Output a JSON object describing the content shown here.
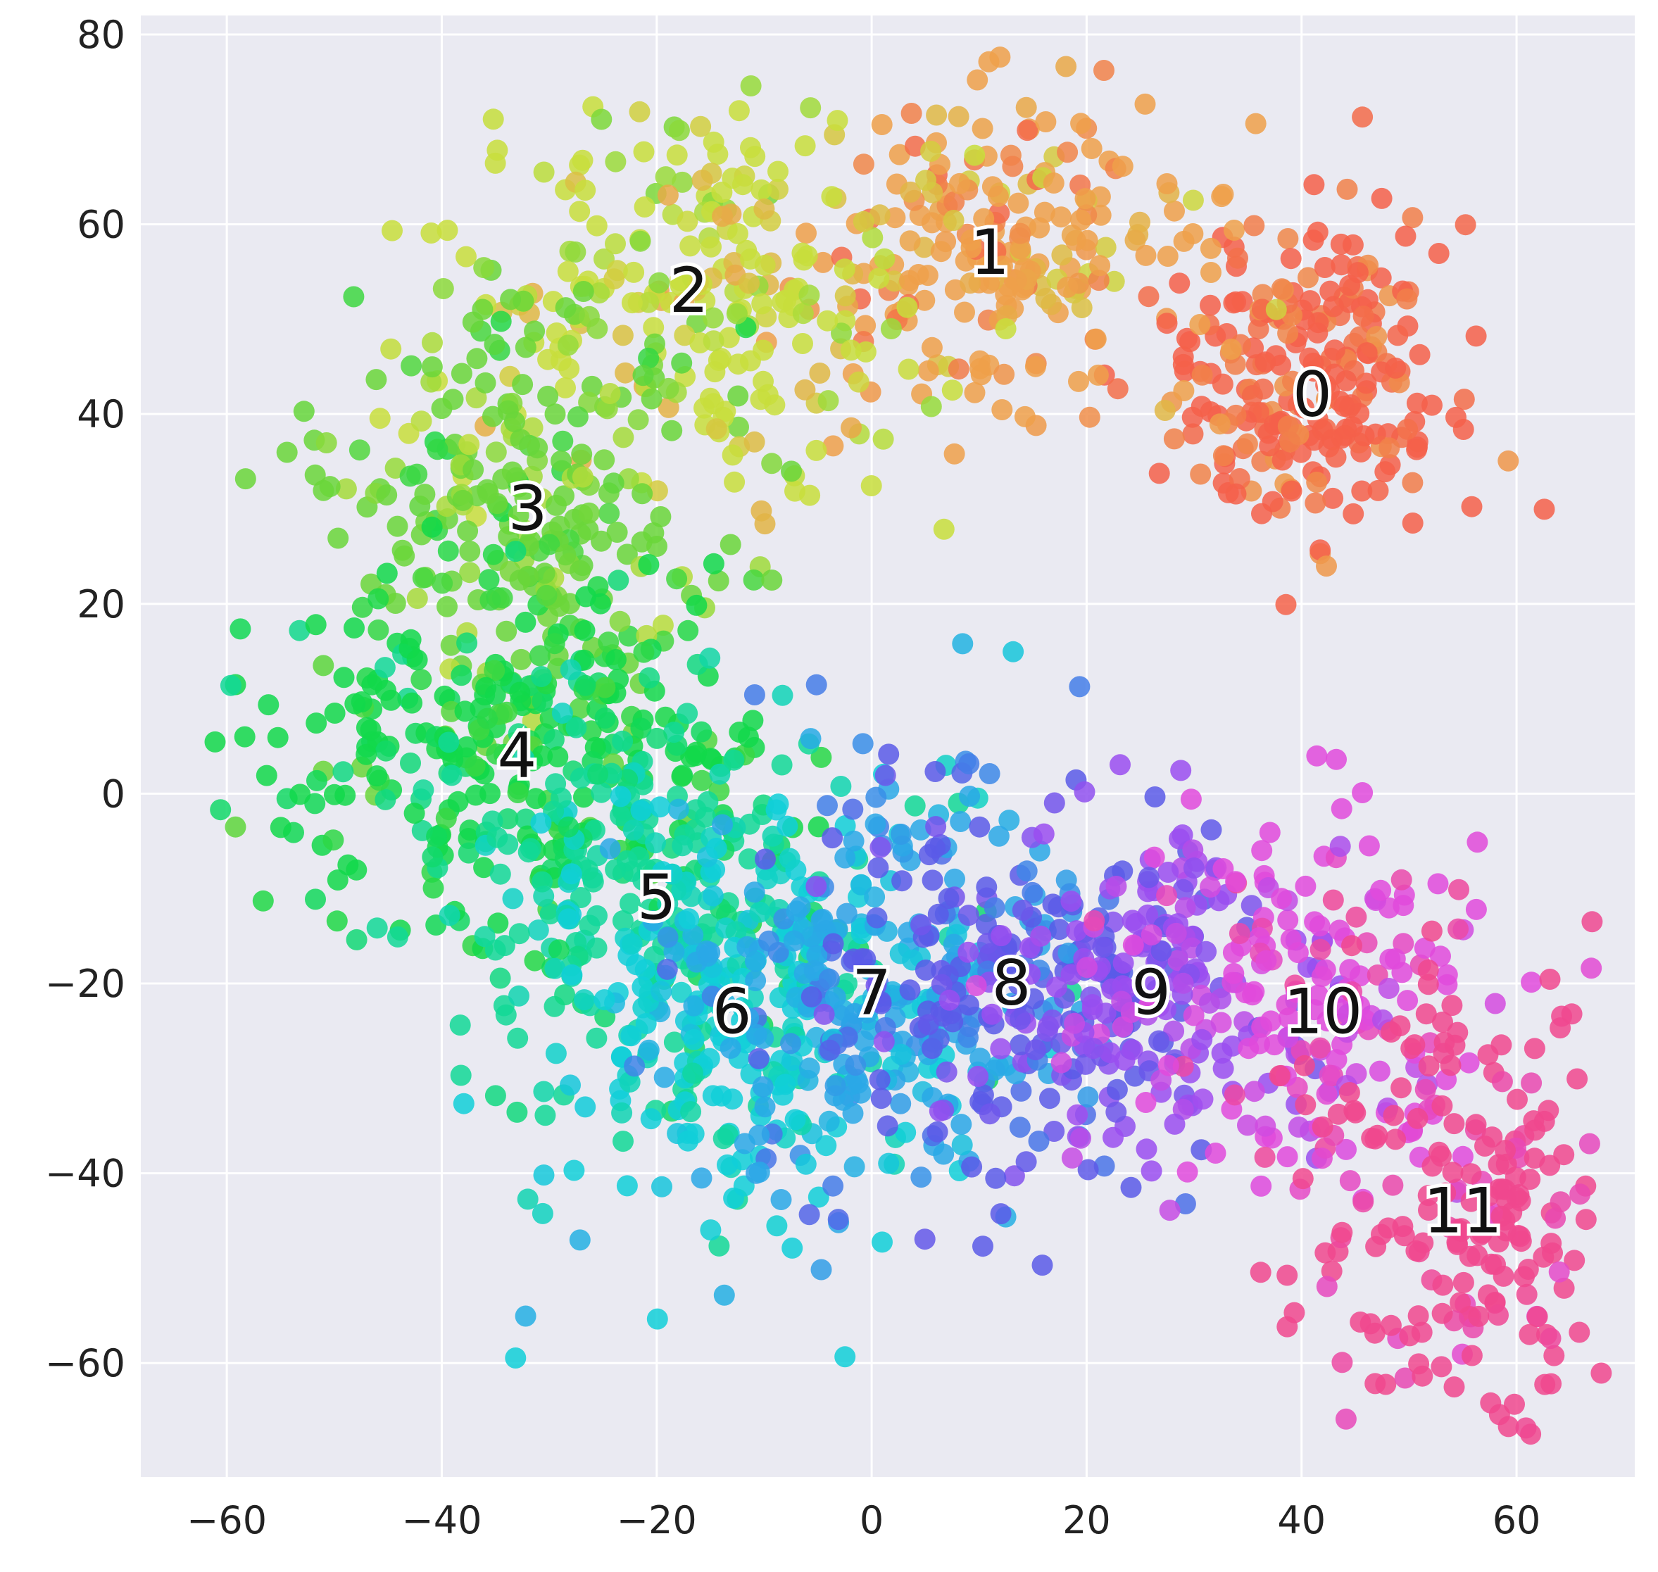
{
  "chart_data": {
    "type": "scatter",
    "title": "",
    "xlabel": "",
    "ylabel": "",
    "xlim": [
      -68,
      71
    ],
    "ylim": [
      -72,
      82
    ],
    "grid": true,
    "legend": "none",
    "background_color": "#eaeaf2",
    "grid_color": "#ffffff",
    "x_ticks": [
      -60,
      -40,
      -20,
      0,
      20,
      40,
      60
    ],
    "y_ticks": [
      -60,
      -40,
      -20,
      0,
      20,
      40,
      60,
      80
    ],
    "x_tick_labels": [
      "−60",
      "−40",
      "−20",
      "0",
      "20",
      "40",
      "60"
    ],
    "y_tick_labels": [
      "−60",
      "−40",
      "−20",
      "0",
      "20",
      "40",
      "60",
      "80"
    ],
    "clusters": [
      {
        "label": "0",
        "label_x": 41,
        "label_y": 42,
        "color": "#f4604a"
      },
      {
        "label": "1",
        "label_x": 11,
        "label_y": 57,
        "color": "#eea04a"
      },
      {
        "label": "2",
        "label_x": -17,
        "label_y": 53,
        "color": "#c8de3c"
      },
      {
        "label": "3",
        "label_x": -32,
        "label_y": 30,
        "color": "#6ad63a"
      },
      {
        "label": "4",
        "label_x": -33,
        "label_y": 4,
        "color": "#12d84a"
      },
      {
        "label": "5",
        "label_x": -20,
        "label_y": -11,
        "color": "#12d896"
      },
      {
        "label": "6",
        "label_x": -13,
        "label_y": -23,
        "color": "#10cfd8"
      },
      {
        "label": "7",
        "label_x": 0,
        "label_y": -21,
        "color": "#2aa8e6"
      },
      {
        "label": "8",
        "label_x": 13,
        "label_y": -20,
        "color": "#5a5ae8"
      },
      {
        "label": "9",
        "label_x": 26,
        "label_y": -21,
        "color": "#9a4ef0"
      },
      {
        "label": "10",
        "label_x": 42,
        "label_y": -23,
        "color": "#e04adc"
      },
      {
        "label": "11",
        "label_x": 55,
        "label_y": -44,
        "color": "#f0488e"
      }
    ]
  }
}
